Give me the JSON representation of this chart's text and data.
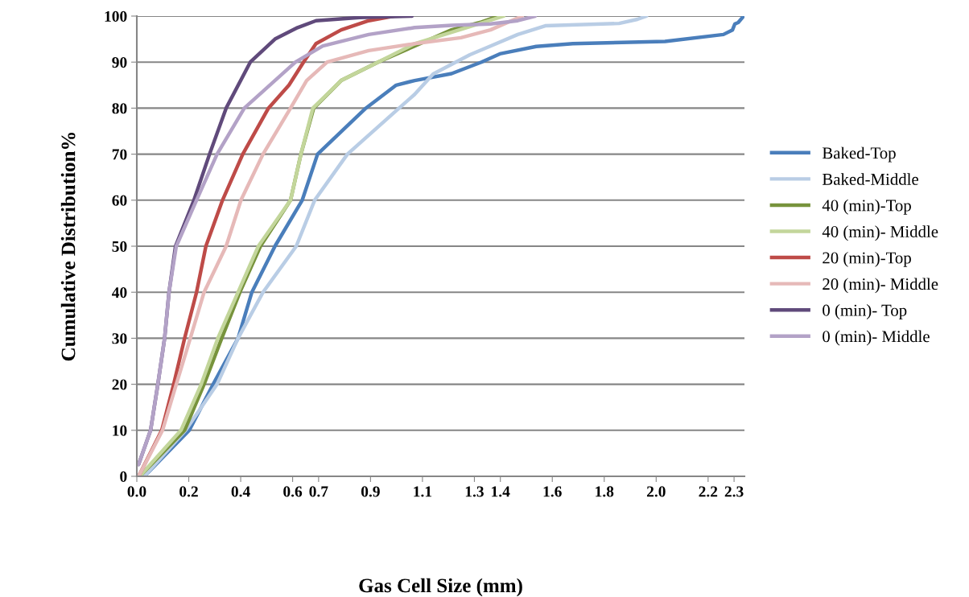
{
  "chart_data": {
    "type": "line",
    "xlabel": "Gas Cell Size (mm)",
    "ylabel": "Cumulative Distribution%",
    "xlim": [
      0,
      2.34
    ],
    "ylim": [
      0,
      100
    ],
    "xticks": [
      {
        "value": 0,
        "label": "0.0"
      },
      {
        "value": 0.2,
        "label": "0.2"
      },
      {
        "value": 0.4,
        "label": "0.4"
      },
      {
        "value": 0.6,
        "label": "0.6"
      },
      {
        "value": 0.7,
        "label": "0.7"
      },
      {
        "value": 0.9,
        "label": "0.9"
      },
      {
        "value": 1.1,
        "label": "1.1"
      },
      {
        "value": 1.3,
        "label": "1.3"
      },
      {
        "value": 1.4,
        "label": "1.4"
      },
      {
        "value": 1.6,
        "label": "1.6"
      },
      {
        "value": 1.8,
        "label": "1.8"
      },
      {
        "value": 2.0,
        "label": "2.0"
      },
      {
        "value": 2.2,
        "label": "2.2"
      },
      {
        "value": 2.3,
        "label": "2.3"
      }
    ],
    "yticks": [
      0,
      10,
      20,
      30,
      40,
      50,
      60,
      70,
      80,
      90,
      100
    ],
    "grid": "y",
    "legend": "right",
    "marker": "none",
    "line_style": "solid",
    "series": [
      {
        "name": "Baked-Top",
        "color": "#4a7ebb",
        "x": [
          0.029,
          0.202,
          0.294,
          0.39,
          0.443,
          0.532,
          0.637,
          0.696,
          0.882,
          0.999,
          1.07,
          1.212,
          1.327,
          1.398,
          1.538,
          1.679,
          2.034,
          2.259,
          2.294,
          2.303,
          2.316,
          2.337
        ],
        "values": [
          0,
          10,
          20,
          30,
          40,
          50,
          60,
          70,
          80,
          85,
          86,
          87.5,
          90,
          91.8,
          93.4,
          94,
          94.5,
          96,
          97,
          98.3,
          98.6,
          100
        ]
      },
      {
        "name": "Baked-Middle",
        "color": "#b9cde5",
        "x": [
          0.029,
          0.188,
          0.309,
          0.39,
          0.486,
          0.614,
          0.685,
          0.811,
          1.01,
          1.07,
          1.141,
          1.283,
          1.362,
          1.467,
          1.573,
          1.857,
          1.928,
          1.963
        ],
        "values": [
          0,
          10,
          20,
          30,
          40,
          50,
          60,
          70,
          80,
          83,
          87.4,
          91.6,
          93.5,
          96,
          97.9,
          98.4,
          99.3,
          100
        ]
      },
      {
        "name": "40 (min)-Top",
        "color": "#77933c",
        "x": [
          0.011,
          0.184,
          0.259,
          0.327,
          0.397,
          0.476,
          0.592,
          0.632,
          0.681,
          0.787,
          0.929,
          1.07,
          1.212,
          1.327,
          1.393
        ],
        "values": [
          0,
          10,
          20,
          30,
          40,
          50,
          60,
          70,
          80,
          86,
          90,
          93.5,
          97,
          98.7,
          100
        ]
      },
      {
        "name": "40 (min)- Middle",
        "color": "#c3d69b",
        "x": [
          0.011,
          0.17,
          0.248,
          0.312,
          0.39,
          0.468,
          0.592,
          0.632,
          0.678,
          0.787,
          0.929,
          1.07,
          1.212,
          1.327,
          1.413
        ],
        "values": [
          0,
          10,
          20,
          30,
          40,
          50,
          60,
          70,
          80,
          86,
          90,
          94,
          96.5,
          98.5,
          100
        ]
      },
      {
        "name": "20 (min)-Top",
        "color": "#be4b48",
        "x": [
          0.007,
          0.096,
          0.142,
          0.184,
          0.23,
          0.266,
          0.33,
          0.408,
          0.507,
          0.586,
          0.642,
          0.69,
          0.787,
          0.893,
          0.989
        ],
        "values": [
          0,
          10,
          20,
          30,
          40,
          50,
          60,
          70,
          80,
          85,
          90,
          94,
          97,
          99,
          100
        ]
      },
      {
        "name": "20 (min)- Middle",
        "color": "#e6b9b8",
        "x": [
          0.007,
          0.099,
          0.152,
          0.206,
          0.259,
          0.344,
          0.401,
          0.486,
          0.592,
          0.654,
          0.733,
          0.893,
          1.07,
          1.248,
          1.362,
          1.484
        ],
        "values": [
          0,
          10,
          20,
          30,
          40,
          50,
          60,
          70,
          80,
          86,
          90,
          92.5,
          94,
          95.3,
          97,
          100
        ]
      },
      {
        "name": "0 (min)- Top",
        "color": "#604a7b",
        "x": [
          0.007,
          0.053,
          0.081,
          0.107,
          0.124,
          0.149,
          0.22,
          0.28,
          0.344,
          0.437,
          0.532,
          0.619,
          0.69,
          0.858,
          1.06
        ],
        "values": [
          2.6,
          10,
          20,
          30,
          40,
          50,
          60,
          70,
          80,
          90,
          95,
          97.5,
          99,
          99.7,
          100
        ]
      },
      {
        "name": "0 (min)- Middle",
        "color": "#b3a2c7",
        "x": [
          0.007,
          0.053,
          0.081,
          0.107,
          0.124,
          0.152,
          0.23,
          0.309,
          0.414,
          0.611,
          0.716,
          0.893,
          1.07,
          1.212,
          1.362,
          1.467,
          1.534
        ],
        "values": [
          2.6,
          10,
          20,
          30,
          40,
          50,
          60,
          70,
          80,
          90,
          93.5,
          96,
          97.5,
          98,
          98.3,
          99,
          100
        ]
      }
    ]
  }
}
